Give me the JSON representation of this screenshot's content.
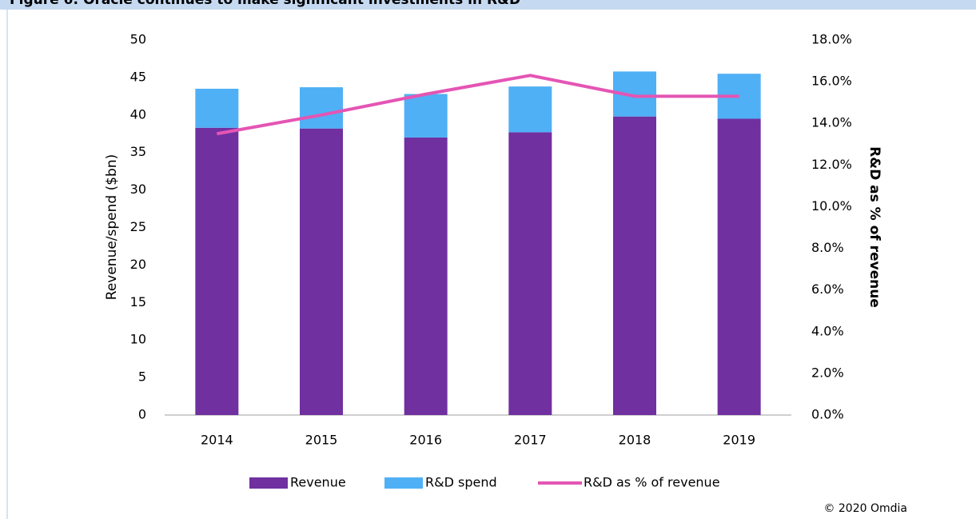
{
  "chart_data": {
    "type": "bar",
    "title": "Figure 6: Oracle continues to make significant investments in R&D",
    "categories": [
      "2014",
      "2015",
      "2016",
      "2017",
      "2018",
      "2019"
    ],
    "series": [
      {
        "name": "Revenue",
        "color": "#7030a0",
        "values": [
          38.3,
          38.2,
          37.0,
          37.7,
          39.8,
          39.5
        ]
      },
      {
        "name": "R&D spend",
        "color": "#4fb0f5",
        "values": [
          5.2,
          5.5,
          5.8,
          6.1,
          6.0,
          6.0
        ]
      },
      {
        "name": "R&D as % of revenue",
        "color": "#e455b4",
        "type": "line",
        "axis": "y2",
        "values": [
          13.5,
          14.4,
          15.4,
          16.3,
          15.3,
          15.3
        ]
      }
    ],
    "stacked": true,
    "ylabel": "Revenue/spend ($bn)",
    "y2label": "R&D as % of revenue",
    "ylim": [
      0,
      50
    ],
    "yticks": [
      0,
      5,
      10,
      15,
      20,
      25,
      30,
      35,
      40,
      45,
      50
    ],
    "y2lim": [
      0,
      18
    ],
    "y2ticks": [
      {
        "value": 0,
        "label": "0.0%"
      },
      {
        "value": 2,
        "label": "2.0%"
      },
      {
        "value": 4,
        "label": "4.0%"
      },
      {
        "value": 6,
        "label": "6.0%"
      },
      {
        "value": 8,
        "label": "8.0%"
      },
      {
        "value": 10,
        "label": "10.0%"
      },
      {
        "value": 12,
        "label": "12.0%"
      },
      {
        "value": 14,
        "label": "14.0%"
      },
      {
        "value": 16,
        "label": "16.0%"
      },
      {
        "value": 18,
        "label": "18.0%"
      }
    ],
    "legend": "bottom",
    "source": "© 2020 Omdia"
  }
}
